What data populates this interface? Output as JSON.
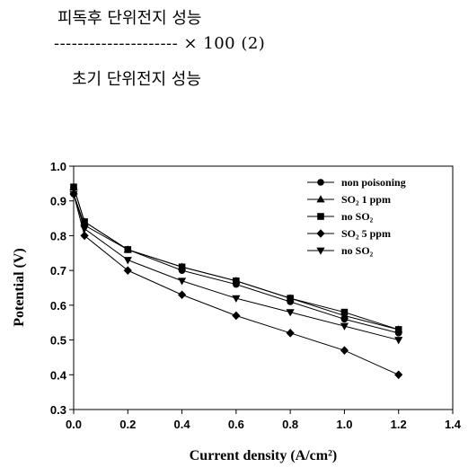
{
  "equation": {
    "numerator": "피독후 단위전지 성능",
    "dash_line": "--------------------- × 100 (2)",
    "denominator": "초기 단위전지 성능"
  },
  "chart_data": {
    "type": "line",
    "xlabel": "Current density (A/cm²)",
    "ylabel": "Potential (V)",
    "xlim": [
      0.0,
      1.4
    ],
    "ylim": [
      0.3,
      1.0
    ],
    "xticks": [
      "0.0",
      "0.2",
      "0.4",
      "0.6",
      "0.8",
      "1.0",
      "1.2",
      "1.4"
    ],
    "yticks": [
      "0.3",
      "0.4",
      "0.5",
      "0.6",
      "0.7",
      "0.8",
      "0.9",
      "1.0"
    ],
    "legend_position": "top-right",
    "grid": false,
    "series": [
      {
        "name": "non poisoning",
        "marker": "circle",
        "x": [
          0.0,
          0.04,
          0.2,
          0.4,
          0.6,
          0.8,
          1.0,
          1.2
        ],
        "y": [
          0.92,
          0.83,
          0.76,
          0.7,
          0.66,
          0.61,
          0.56,
          0.52
        ]
      },
      {
        "name": "SO₂ 1 ppm",
        "marker": "triangle-up",
        "x": [
          0.0,
          0.04,
          0.2,
          0.4,
          0.6,
          0.8,
          1.0,
          1.2
        ],
        "y": [
          0.94,
          0.84,
          0.76,
          0.71,
          0.67,
          0.62,
          0.57,
          0.53
        ]
      },
      {
        "name": "no SO₂",
        "marker": "square",
        "x": [
          0.0,
          0.04,
          0.2,
          0.4,
          0.6,
          0.8,
          1.0,
          1.2
        ],
        "y": [
          0.94,
          0.84,
          0.76,
          0.71,
          0.67,
          0.62,
          0.58,
          0.53
        ]
      },
      {
        "name": "SO₂ 5 ppm",
        "marker": "diamond",
        "x": [
          0.0,
          0.04,
          0.2,
          0.4,
          0.6,
          0.8,
          1.0,
          1.2
        ],
        "y": [
          0.92,
          0.8,
          0.7,
          0.63,
          0.57,
          0.52,
          0.47,
          0.4
        ]
      },
      {
        "name": "no SO₂",
        "marker": "triangle-down",
        "x": [
          0.0,
          0.04,
          0.2,
          0.4,
          0.6,
          0.8,
          1.0,
          1.2
        ],
        "y": [
          0.92,
          0.82,
          0.73,
          0.67,
          0.62,
          0.58,
          0.54,
          0.5
        ]
      }
    ]
  }
}
